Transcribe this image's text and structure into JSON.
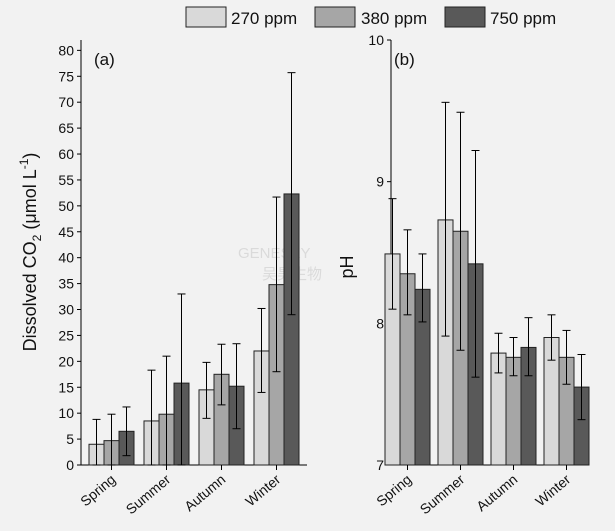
{
  "legend": [
    {
      "label": "270 ppm",
      "color": "#d9d9d9"
    },
    {
      "label": "380 ppm",
      "color": "#a6a6a6"
    },
    {
      "label": "750 ppm",
      "color": "#595959"
    }
  ],
  "watermark": {
    "line1": "GENESKY",
    "line2": "吴昊生物"
  },
  "chart_data": [
    {
      "type": "bar",
      "panel_label": "(a)",
      "title": "",
      "xlabel": "",
      "ylabel_main": "Dissolved CO",
      "ylabel_sub": "2",
      "ylabel_units_open": " (μmol L",
      "ylabel_sup": "-1",
      "ylabel_close": ")",
      "categories": [
        "Spring",
        "Summer",
        "Autumn",
        "Winter"
      ],
      "ylim": [
        0,
        82
      ],
      "yticks": [
        0,
        5,
        10,
        15,
        20,
        25,
        30,
        35,
        40,
        45,
        50,
        55,
        60,
        65,
        70,
        75,
        80
      ],
      "ytick_labels": [
        "0",
        "5",
        "10",
        "15",
        "20",
        "25",
        "30",
        "35",
        "40",
        "45",
        "50",
        "55",
        "60",
        "65",
        "70",
        "75",
        "80"
      ],
      "series": [
        {
          "name": "270 ppm",
          "values": [
            4.0,
            8.5,
            14.5,
            22.0
          ],
          "err_low": [
            0.0,
            0.0,
            9.0,
            14.0
          ],
          "err_high": [
            8.8,
            18.3,
            19.8,
            30.2
          ]
        },
        {
          "name": "380 ppm",
          "values": [
            4.7,
            9.8,
            17.5,
            34.8
          ],
          "err_low": [
            0.0,
            0.0,
            11.6,
            18.0
          ],
          "err_high": [
            9.8,
            21.0,
            23.3,
            51.7
          ]
        },
        {
          "name": "750 ppm",
          "values": [
            6.5,
            15.8,
            15.2,
            52.3
          ],
          "err_low": [
            1.8,
            0.0,
            7.0,
            29.0
          ],
          "err_high": [
            11.2,
            33.0,
            23.4,
            75.7
          ]
        }
      ]
    },
    {
      "type": "bar",
      "panel_label": "(b)",
      "title": "",
      "xlabel": "",
      "ylabel": "pH",
      "categories": [
        "Spring",
        "Summer",
        "Autumn",
        "Winter"
      ],
      "ylim": [
        7,
        10
      ],
      "yticks": [
        7,
        8,
        9,
        10
      ],
      "ytick_labels": [
        "7",
        "8",
        "9",
        "10"
      ],
      "series": [
        {
          "name": "270 ppm",
          "values": [
            8.49,
            8.73,
            7.79,
            7.9
          ],
          "err_low": [
            8.1,
            7.91,
            7.65,
            7.74
          ],
          "err_high": [
            8.88,
            9.56,
            7.93,
            8.06
          ]
        },
        {
          "name": "380 ppm",
          "values": [
            8.35,
            8.65,
            7.76,
            7.76
          ],
          "err_low": [
            8.06,
            7.81,
            7.63,
            7.57
          ],
          "err_high": [
            8.66,
            9.49,
            7.9,
            7.95
          ]
        },
        {
          "name": "750 ppm",
          "values": [
            8.24,
            8.42,
            7.83,
            7.55
          ],
          "err_low": [
            8.01,
            7.62,
            7.63,
            7.32
          ],
          "err_high": [
            8.49,
            9.22,
            8.04,
            7.78
          ]
        }
      ]
    }
  ]
}
